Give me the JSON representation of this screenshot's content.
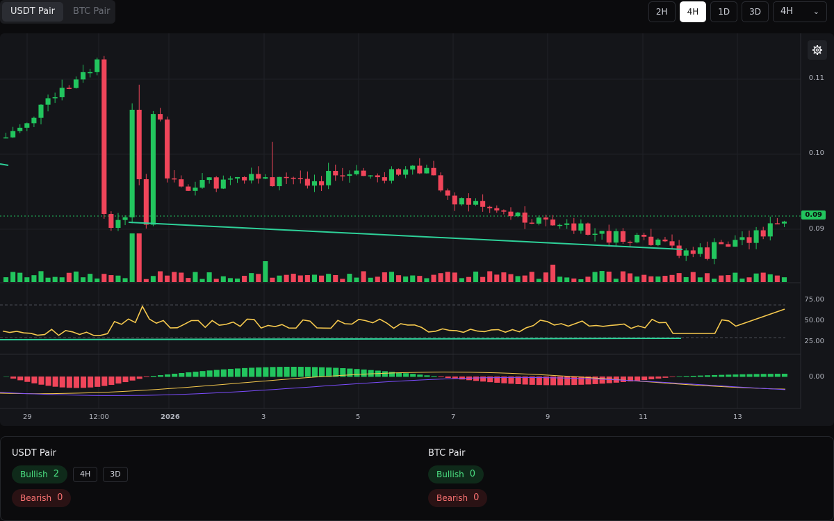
{
  "pair_tabs": [
    {
      "label": "USDT Pair",
      "active": true
    },
    {
      "label": "BTC Pair",
      "active": false
    }
  ],
  "timeframes": {
    "buttons": [
      {
        "label": "2H",
        "active": false
      },
      {
        "label": "4H",
        "active": true
      },
      {
        "label": "1D",
        "active": false
      },
      {
        "label": "3D",
        "active": false
      }
    ],
    "selected": "4H"
  },
  "chart": {
    "price_axis": [
      "0.11",
      "0.10",
      "0.09"
    ],
    "last_price": "0.09",
    "rsi_axis": [
      "75.00",
      "50.00",
      "25.00"
    ],
    "macd_axis": [
      "0.00"
    ],
    "time_axis": [
      "29",
      "12:00",
      "2026",
      "3",
      "5",
      "7",
      "9",
      "11",
      "13"
    ],
    "colors": {
      "up": "#22c55e",
      "down": "#f0455a",
      "rsi": "#f6c94e",
      "macd_signal": "#7c4dff",
      "trendline": "#2ed199"
    }
  },
  "summary": {
    "usdt": {
      "title": "USDT Pair",
      "bullish_label": "Bullish",
      "bullish_count": "2",
      "bearish_label": "Bearish",
      "bearish_count": "0",
      "chips": [
        "4H",
        "3D"
      ]
    },
    "btc": {
      "title": "BTC Pair",
      "bullish_label": "Bullish",
      "bullish_count": "0",
      "bearish_label": "Bearish",
      "bearish_count": "0"
    }
  }
}
